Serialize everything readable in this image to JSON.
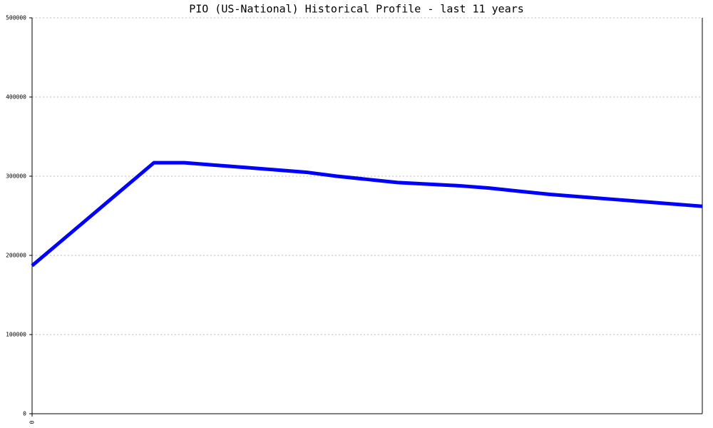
{
  "chart_data": {
    "type": "line",
    "title": "PIO (US-National) Historical Profile - last 11 years",
    "categories": [
      "0",
      null,
      null,
      null,
      null,
      null,
      null,
      null,
      null,
      null,
      null,
      null,
      null,
      null,
      null,
      null,
      null,
      null,
      null,
      null,
      null,
      null,
      null
    ],
    "series": [
      {
        "color": "#0000ff",
        "values": [
          187000,
          219500,
          252000,
          284500,
          317000,
          317000,
          314000,
          311000,
          308000,
          305000,
          300000,
          296000,
          292000,
          290000,
          288000,
          285000,
          281000,
          277000,
          274000,
          271000,
          268000,
          265000,
          262000
        ]
      }
    ],
    "ylim": [
      0,
      500000
    ],
    "yticks": [
      0,
      100000,
      200000,
      300000,
      400000,
      500000
    ],
    "grid": true
  }
}
